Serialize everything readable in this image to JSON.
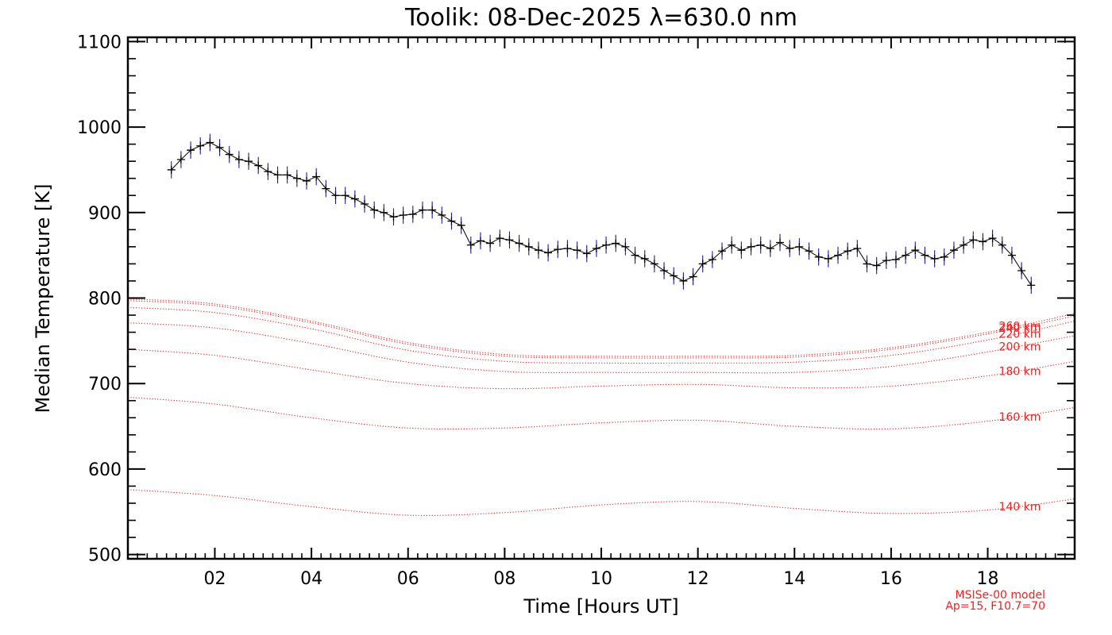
{
  "chart_data": {
    "type": "line",
    "title": "Toolik: 08-Dec-2025 λ=630.0 nm",
    "xlabel": "Time [Hours UT]",
    "ylabel": "Median Temperature [K]",
    "xlim": [
      0.2,
      19.8
    ],
    "ylim": [
      495,
      1105
    ],
    "x_ticks": [
      2,
      4,
      6,
      8,
      10,
      12,
      14,
      16,
      18
    ],
    "x_tick_labels": [
      "02",
      "04",
      "06",
      "08",
      "10",
      "12",
      "14",
      "16",
      "18"
    ],
    "y_ticks": [
      500,
      600,
      700,
      800,
      900,
      1000,
      1100
    ],
    "y_tick_labels": [
      "500",
      "600",
      "700",
      "800",
      "900",
      "1000",
      "1100"
    ],
    "measured_series": {
      "name": "Median Temperature",
      "color": "#000000",
      "errorbar_color": "#1a1aa8",
      "error": 10,
      "points": [
        [
          1.1,
          950
        ],
        [
          1.3,
          962
        ],
        [
          1.5,
          973
        ],
        [
          1.7,
          978
        ],
        [
          1.9,
          982
        ],
        [
          2.1,
          976
        ],
        [
          2.3,
          968
        ],
        [
          2.5,
          962
        ],
        [
          2.7,
          960
        ],
        [
          2.9,
          955
        ],
        [
          3.1,
          948
        ],
        [
          3.3,
          944
        ],
        [
          3.5,
          944
        ],
        [
          3.7,
          940
        ],
        [
          3.9,
          937
        ],
        [
          4.1,
          942
        ],
        [
          4.3,
          928
        ],
        [
          4.5,
          920
        ],
        [
          4.7,
          920
        ],
        [
          4.9,
          916
        ],
        [
          5.1,
          910
        ],
        [
          5.3,
          903
        ],
        [
          5.5,
          900
        ],
        [
          5.7,
          895
        ],
        [
          5.9,
          897
        ],
        [
          6.1,
          898
        ],
        [
          6.3,
          903
        ],
        [
          6.5,
          903
        ],
        [
          6.7,
          897
        ],
        [
          6.9,
          890
        ],
        [
          7.1,
          885
        ],
        [
          7.3,
          862
        ],
        [
          7.5,
          867
        ],
        [
          7.7,
          864
        ],
        [
          7.9,
          870
        ],
        [
          8.1,
          868
        ],
        [
          8.3,
          864
        ],
        [
          8.5,
          860
        ],
        [
          8.7,
          856
        ],
        [
          8.9,
          853
        ],
        [
          9.1,
          857
        ],
        [
          9.3,
          858
        ],
        [
          9.5,
          856
        ],
        [
          9.7,
          852
        ],
        [
          9.9,
          858
        ],
        [
          10.1,
          862
        ],
        [
          10.3,
          864
        ],
        [
          10.5,
          860
        ],
        [
          10.7,
          850
        ],
        [
          10.9,
          846
        ],
        [
          11.1,
          840
        ],
        [
          11.3,
          832
        ],
        [
          11.5,
          826
        ],
        [
          11.7,
          820
        ],
        [
          11.9,
          825
        ],
        [
          12.1,
          840
        ],
        [
          12.3,
          845
        ],
        [
          12.5,
          855
        ],
        [
          12.7,
          862
        ],
        [
          12.9,
          856
        ],
        [
          13.1,
          860
        ],
        [
          13.3,
          862
        ],
        [
          13.5,
          858
        ],
        [
          13.7,
          865
        ],
        [
          13.9,
          858
        ],
        [
          14.1,
          860
        ],
        [
          14.3,
          855
        ],
        [
          14.5,
          848
        ],
        [
          14.7,
          846
        ],
        [
          14.9,
          850
        ],
        [
          15.1,
          855
        ],
        [
          15.3,
          858
        ],
        [
          15.5,
          840
        ],
        [
          15.7,
          838
        ],
        [
          15.9,
          844
        ],
        [
          16.1,
          845
        ],
        [
          16.3,
          850
        ],
        [
          16.5,
          856
        ],
        [
          16.7,
          850
        ],
        [
          16.9,
          846
        ],
        [
          17.1,
          848
        ],
        [
          17.3,
          856
        ],
        [
          17.5,
          862
        ],
        [
          17.7,
          868
        ],
        [
          17.9,
          866
        ],
        [
          18.1,
          870
        ],
        [
          18.3,
          862
        ],
        [
          18.5,
          850
        ],
        [
          18.7,
          832
        ],
        [
          18.9,
          815
        ]
      ]
    },
    "model_series": [
      {
        "label": "260 km",
        "points": [
          [
            0.2,
            799
          ],
          [
            2.0,
            793
          ],
          [
            4.0,
            773
          ],
          [
            6.0,
            748
          ],
          [
            8.0,
            734
          ],
          [
            10.0,
            732
          ],
          [
            12.0,
            732
          ],
          [
            14.0,
            733
          ],
          [
            16.0,
            742
          ],
          [
            18.0,
            760
          ],
          [
            19.8,
            782
          ]
        ]
      },
      {
        "label": "240 km",
        "points": [
          [
            0.2,
            797
          ],
          [
            2.0,
            791
          ],
          [
            4.0,
            771
          ],
          [
            6.0,
            746
          ],
          [
            8.0,
            732
          ],
          [
            10.0,
            730
          ],
          [
            12.0,
            730
          ],
          [
            14.0,
            731
          ],
          [
            16.0,
            740
          ],
          [
            18.0,
            758
          ],
          [
            19.8,
            779
          ]
        ]
      },
      {
        "label": "220 km",
        "points": [
          [
            0.2,
            789
          ],
          [
            2.0,
            783
          ],
          [
            4.0,
            764
          ],
          [
            6.0,
            739
          ],
          [
            8.0,
            726
          ],
          [
            10.0,
            724
          ],
          [
            12.0,
            724
          ],
          [
            14.0,
            725
          ],
          [
            16.0,
            733
          ],
          [
            18.0,
            751
          ],
          [
            19.8,
            773
          ]
        ]
      },
      {
        "label": "200 km",
        "points": [
          [
            0.2,
            771
          ],
          [
            2.0,
            765
          ],
          [
            4.0,
            747
          ],
          [
            6.0,
            725
          ],
          [
            8.0,
            714
          ],
          [
            10.0,
            713
          ],
          [
            12.0,
            713
          ],
          [
            14.0,
            713
          ],
          [
            16.0,
            720
          ],
          [
            18.0,
            737
          ],
          [
            19.8,
            756
          ]
        ]
      },
      {
        "label": "180 km",
        "points": [
          [
            0.2,
            740
          ],
          [
            2.0,
            733
          ],
          [
            4.0,
            716
          ],
          [
            6.0,
            700
          ],
          [
            8.0,
            694
          ],
          [
            10.0,
            697
          ],
          [
            12.0,
            699
          ],
          [
            14.0,
            695
          ],
          [
            16.0,
            697
          ],
          [
            18.0,
            709
          ],
          [
            19.8,
            726
          ]
        ]
      },
      {
        "label": "160 km",
        "points": [
          [
            0.2,
            684
          ],
          [
            2.0,
            676
          ],
          [
            4.0,
            660
          ],
          [
            6.0,
            648
          ],
          [
            8.0,
            648
          ],
          [
            10.0,
            654
          ],
          [
            12.0,
            657
          ],
          [
            14.0,
            650
          ],
          [
            16.0,
            647
          ],
          [
            18.0,
            656
          ],
          [
            19.8,
            672
          ]
        ]
      },
      {
        "label": "140 km",
        "points": [
          [
            0.2,
            576
          ],
          [
            2.0,
            569
          ],
          [
            4.0,
            556
          ],
          [
            6.0,
            546
          ],
          [
            8.0,
            549
          ],
          [
            10.0,
            558
          ],
          [
            12.0,
            562
          ],
          [
            14.0,
            554
          ],
          [
            16.0,
            548
          ],
          [
            18.0,
            552
          ],
          [
            19.8,
            565
          ]
        ]
      }
    ],
    "model_color": "#ee2222",
    "annotations": [
      "MSISe-00 model",
      "Ap=15, F10.7=70"
    ]
  }
}
